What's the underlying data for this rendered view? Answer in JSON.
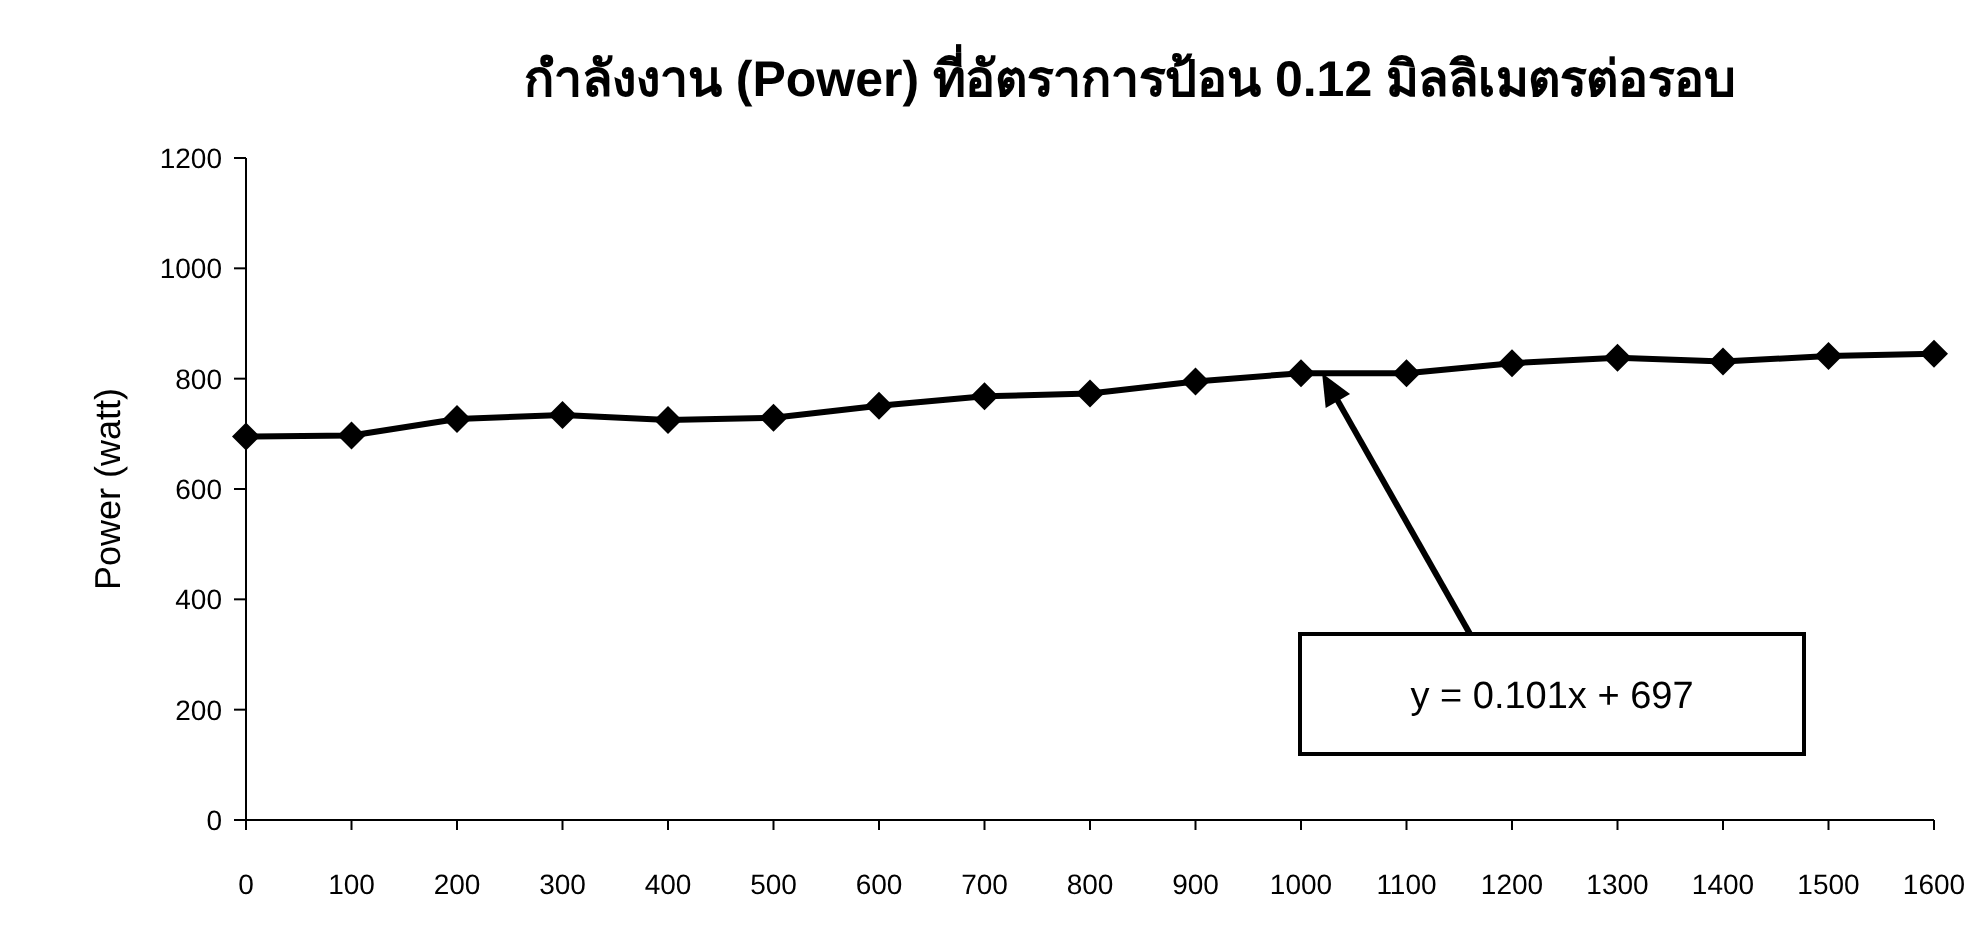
{
  "chart_data": {
    "type": "line",
    "title": "กำลังงาน (Power) ที่อัตราการป้อน 0.12 มิลลิเมตรต่อรอบ",
    "ylabel": "Power (watt)",
    "x": [
      0,
      100,
      200,
      300,
      400,
      500,
      600,
      700,
      800,
      900,
      1000,
      1100,
      1200,
      1300,
      1400,
      1500,
      1600
    ],
    "series": [
      {
        "color": "#000000",
        "values": [
          695,
          697,
          727,
          734,
          725,
          729,
          751,
          768,
          773,
          795,
          810,
          810,
          828,
          838,
          831,
          841,
          845
        ]
      }
    ],
    "xlim": [
      0,
      1600
    ],
    "xticks": [
      0,
      100,
      200,
      300,
      400,
      500,
      600,
      700,
      800,
      900,
      1000,
      1100,
      1200,
      1300,
      1400,
      1500,
      1600
    ],
    "ylim": [
      0,
      1200
    ],
    "yticks": [
      0,
      200,
      400,
      600,
      800,
      1000,
      1200
    ],
    "marker": "diamond",
    "line_style": "solid",
    "grid": false,
    "annotations": [
      {
        "text": "y = 0.101x + 697",
        "x": 1020,
        "y": 810
      }
    ]
  }
}
